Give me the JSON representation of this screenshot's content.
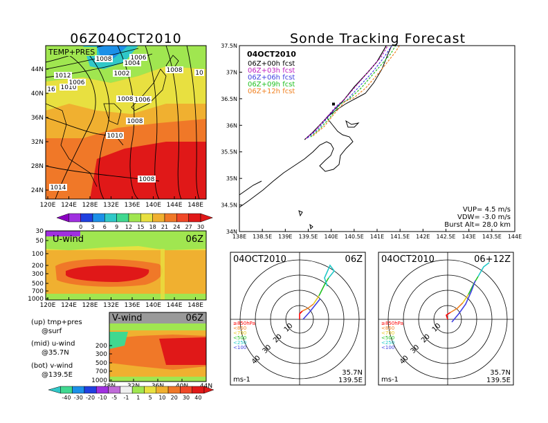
{
  "colors": {
    "scale": [
      "#8a00c0",
      "#a030e0",
      "#2040e0",
      "#1c90e8",
      "#30c8c8",
      "#40d890",
      "#a0e650",
      "#e8e040",
      "#f0b030",
      "#f07828",
      "#f04828",
      "#e01818"
    ],
    "track": [
      "#000000",
      "#c020c0",
      "#4040e0",
      "#20c020",
      "#f08020"
    ],
    "hodo": [
      "#ff0000",
      "#f08020",
      "#e8c820",
      "#20c020",
      "#20c8c8",
      "#4040e0"
    ]
  },
  "temp_panel": {
    "title": "06Z04OCT2010",
    "label": "TEMP+PRES",
    "xticks": [
      "120E",
      "124E",
      "128E",
      "132E",
      "136E",
      "140E",
      "144E",
      "148E"
    ],
    "yticks": [
      "44N",
      "40N",
      "36N",
      "32N",
      "28N",
      "24N"
    ],
    "isobar_labels": [
      "1006",
      "1004",
      "1002",
      "1012",
      "1010",
      "1006",
      "1008",
      "1006",
      "1008",
      "1008",
      "1010",
      "1008",
      "1014",
      "1008",
      "10",
      "16"
    ],
    "colorbar": [
      "0",
      "3",
      "6",
      "9",
      "12",
      "15",
      "18",
      "21",
      "24",
      "27",
      "30"
    ]
  },
  "u_panel": {
    "label": "U-wind",
    "time": "06Z",
    "yticks": [
      "30",
      "50",
      "100",
      "200",
      "300",
      "500",
      "700",
      "1000"
    ],
    "xticks": [
      "120E",
      "124E",
      "128E",
      "132E",
      "136E",
      "140E",
      "144E",
      "148E"
    ]
  },
  "v_panel": {
    "label": "V-wind",
    "time": "06Z",
    "yticks": [
      "200",
      "300",
      "500",
      "700",
      "1000"
    ],
    "xticks": [
      "28N",
      "32N",
      "36N",
      "40N",
      "44N"
    ],
    "colorbar": [
      "-40",
      "-30",
      "-20",
      "-10",
      "-5",
      "-1",
      "1",
      "5",
      "10",
      "20",
      "30",
      "40"
    ]
  },
  "legend_text": [
    "(up) tmp+pres",
    "@surf",
    "(mid) u-wind",
    "@35.7N",
    "(bot) v-wind",
    "@139.5E"
  ],
  "sonde": {
    "title": "Sonde Tracking Forecast",
    "date": "04OCT2010",
    "forecasts": [
      "06Z+00h fcst",
      "06Z+03h fcst",
      "06Z+06h fcst",
      "06Z+09h fcst",
      "06Z+12h fcst"
    ],
    "xticks": [
      "138E",
      "138.5E",
      "139E",
      "139.5E",
      "140E",
      "140.5E",
      "141E",
      "141.5E",
      "142E",
      "142.5E",
      "143E",
      "143.5E",
      "144E"
    ],
    "yticks": [
      "37.5N",
      "37N",
      "36.5N",
      "36N",
      "35.5N",
      "35N",
      "34.5N",
      "34N"
    ],
    "vup": "VUP= 4.5 m/s",
    "vdw": "VDW= -3.0 m/s",
    "burst": "Burst Alt= 28.0 km"
  },
  "hodo_left": {
    "date": "04OCT2010",
    "time": "06Z",
    "rings": [
      "10",
      "20",
      "30",
      "40"
    ],
    "levels": [
      "≥850hPa",
      "<850",
      "<700",
      "<500",
      "<250",
      "<100"
    ],
    "lat": "35.7N",
    "lon": "139.5E",
    "unit": "ms-1"
  },
  "hodo_right": {
    "date": "04OCT2010",
    "time": "06+12Z",
    "rings": [
      "10",
      "20",
      "30",
      "40"
    ],
    "levels": [
      "≥850hPa",
      "<850",
      "<700",
      "<500",
      "<250",
      "<100"
    ],
    "lat": "35.7N",
    "lon": "139.5E",
    "unit": "ms-1"
  },
  "chart_data": [
    {
      "type": "line",
      "title": "Sonde Tracking Forecast",
      "xlim": [
        138,
        144
      ],
      "ylim": [
        34,
        37.5
      ],
      "legend_position": "top-left",
      "series": [
        {
          "name": "06Z+00h fcst",
          "x": [
            139.42,
            139.6,
            139.8,
            140.05,
            140.25,
            140.5,
            140.8,
            141.0,
            141.2,
            141.3
          ],
          "y": [
            35.73,
            35.87,
            36.05,
            36.28,
            36.45,
            36.72,
            37.0,
            37.2,
            37.5,
            37.72
          ]
        },
        {
          "name": "06Z+03h fcst",
          "x": [
            139.45,
            139.65,
            139.85,
            140.1,
            140.3,
            140.55,
            140.85,
            141.1,
            141.3
          ],
          "y": [
            35.75,
            35.9,
            36.1,
            36.35,
            36.5,
            36.75,
            37.05,
            37.3,
            37.6
          ]
        },
        {
          "name": "06Z+06h fcst",
          "x": [
            139.48,
            139.7,
            139.9,
            140.15,
            140.35,
            140.6,
            140.9,
            141.15,
            141.4
          ],
          "y": [
            35.76,
            35.92,
            36.12,
            36.38,
            36.48,
            36.72,
            37.0,
            37.28,
            37.6
          ]
        },
        {
          "name": "06Z+09h fcst",
          "x": [
            139.55,
            139.75,
            139.95,
            140.2,
            140.4,
            140.65,
            140.95,
            141.3,
            141.55
          ],
          "y": [
            35.78,
            35.93,
            36.12,
            36.4,
            36.5,
            36.7,
            37.0,
            37.35,
            37.72
          ]
        },
        {
          "name": "06Z+12h fcst",
          "x": [
            139.6,
            139.85,
            140.05,
            140.3,
            140.5,
            140.75,
            141.05,
            141.4,
            141.65
          ],
          "y": [
            35.8,
            35.98,
            36.2,
            36.45,
            36.52,
            36.7,
            37.0,
            37.38,
            37.73
          ]
        }
      ]
    }
  ]
}
